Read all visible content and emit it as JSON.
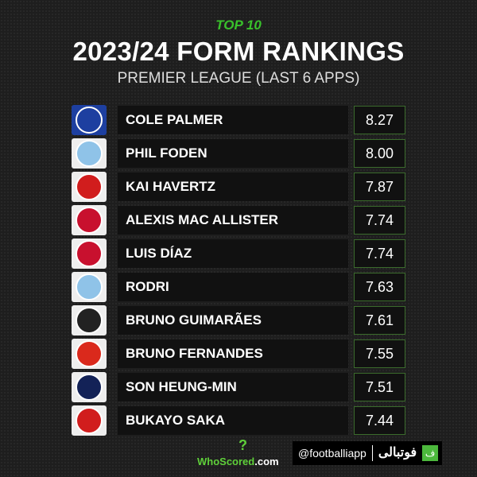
{
  "header": {
    "kicker": "TOP 10",
    "title": "2023/24 FORM RANKINGS",
    "subtitle": "PREMIER LEAGUE (LAST 6 APPS)"
  },
  "rows": [
    {
      "club": "Chelsea",
      "player": "COLE PALMER",
      "rating": "8.27",
      "color": "#1d3fa0"
    },
    {
      "club": "Manchester City",
      "player": "PHIL FODEN",
      "rating": "8.00",
      "color": "#8fc3e8"
    },
    {
      "club": "Arsenal",
      "player": "KAI HAVERTZ",
      "rating": "7.87",
      "color": "#d11d1d"
    },
    {
      "club": "Liverpool",
      "player": "ALEXIS MAC ALLISTER",
      "rating": "7.74",
      "color": "#c8102e"
    },
    {
      "club": "Liverpool",
      "player": "LUIS DÍAZ",
      "rating": "7.74",
      "color": "#c8102e"
    },
    {
      "club": "Manchester City",
      "player": "RODRI",
      "rating": "7.63",
      "color": "#8fc3e8"
    },
    {
      "club": "Newcastle",
      "player": "BRUNO GUIMARÃES",
      "rating": "7.61",
      "color": "#222222"
    },
    {
      "club": "Manchester United",
      "player": "BRUNO FERNANDES",
      "rating": "7.55",
      "color": "#da291c"
    },
    {
      "club": "Tottenham",
      "player": "SON HEUNG-MIN",
      "rating": "7.51",
      "color": "#132257"
    },
    {
      "club": "Arsenal",
      "player": "BUKAYO SAKA",
      "rating": "7.44",
      "color": "#d11d1d"
    }
  ],
  "footer": {
    "whoscored_a": "WhoScored",
    "whoscored_b": ".com",
    "handle": "@footballiapp",
    "arabic": "فوتبالی",
    "logo_letter": "ف"
  }
}
